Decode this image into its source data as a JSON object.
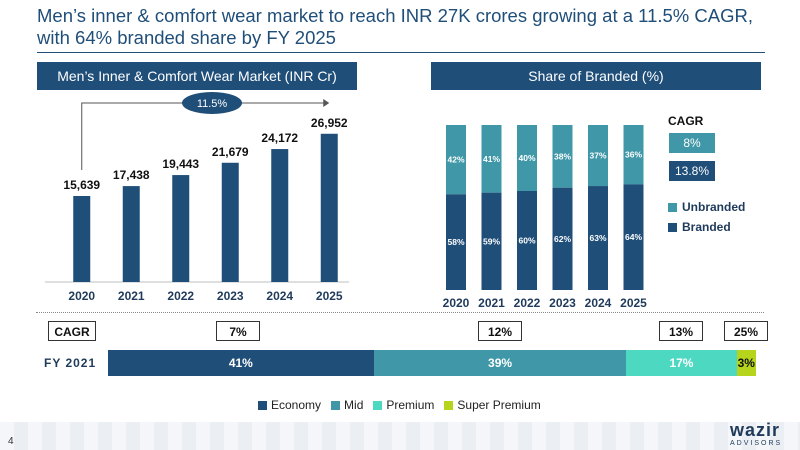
{
  "slide": {
    "title_line1": "Men’s inner & comfort wear market to reach INR 27K crores growing at a 11.5% CAGR,",
    "title_line2": "with 64% branded share by FY 2025",
    "page_number": "4",
    "logo_word": "wazir",
    "logo_sub": "ADVISORS"
  },
  "colors": {
    "navy": "#1f4e79",
    "teal": "#3f97a7",
    "mint": "#4dd9c1",
    "lime": "#b6d41c"
  },
  "chart_data": [
    {
      "type": "bar",
      "title": "Men’s Inner & Comfort Wear Market (INR Cr)",
      "categories": [
        "2020",
        "2021",
        "2022",
        "2023",
        "2024",
        "2025"
      ],
      "values": [
        15639,
        17438,
        19443,
        21679,
        24172,
        26952
      ],
      "value_labels": [
        "15,639",
        "17,438",
        "19,443",
        "21,679",
        "24,172",
        "26,952"
      ],
      "cagr_annotation": "11.5%",
      "ylim": [
        0,
        30000
      ]
    },
    {
      "type": "bar",
      "stacked": true,
      "title": "Share of Branded (%)",
      "categories": [
        "2020",
        "2021",
        "2022",
        "2023",
        "2024",
        "2025"
      ],
      "series": [
        {
          "name": "Branded",
          "values": [
            58,
            59,
            60,
            62,
            63,
            64
          ],
          "labels": [
            "58%",
            "59%",
            "60%",
            "62%",
            "63%",
            "64%"
          ],
          "color": "#1f4e79"
        },
        {
          "name": "Unbranded",
          "values": [
            42,
            41,
            40,
            38,
            37,
            36
          ],
          "labels": [
            "42%",
            "41%",
            "40%",
            "38%",
            "37%",
            "36%"
          ],
          "color": "#3f97a7"
        }
      ],
      "cagr_title": "CAGR",
      "cagr": [
        {
          "value": "8%",
          "series": "Unbranded",
          "color": "#3f97a7"
        },
        {
          "value": "13.8%",
          "series": "Branded",
          "color": "#1f4e79"
        }
      ],
      "legend": [
        "Unbranded",
        "Branded"
      ]
    },
    {
      "type": "bar",
      "orientation": "horizontal",
      "stacked": true,
      "row_label": "FY 2021",
      "cagr_label": "CAGR",
      "series": [
        {
          "name": "Economy",
          "value": 41,
          "label": "41%",
          "cagr": "7%",
          "color": "#1f4e79"
        },
        {
          "name": "Mid",
          "value": 39,
          "label": "39%",
          "cagr": "12%",
          "color": "#3f97a7"
        },
        {
          "name": "Premium",
          "value": 17,
          "label": "17%",
          "cagr": "13%",
          "color": "#4dd9c1"
        },
        {
          "name": "Super Premium",
          "value": 3,
          "label": "3%",
          "cagr": "25%",
          "color": "#b6d41c"
        }
      ]
    }
  ]
}
